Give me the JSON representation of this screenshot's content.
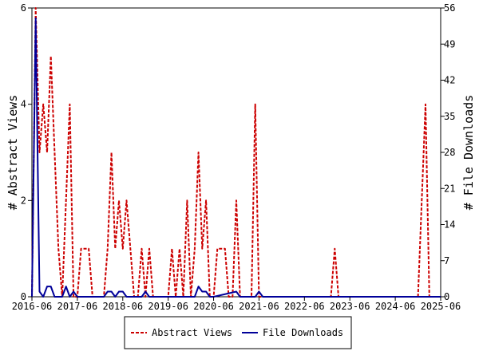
{
  "chart_data": {
    "type": "line",
    "title": "",
    "x_ticks": [
      "2016-06",
      "2017-06",
      "2018-06",
      "2019-06",
      "2020-06",
      "2021-06",
      "2022-06",
      "2023-06",
      "2024-06",
      "2025-06"
    ],
    "left_axis": {
      "label": "# Abstract Views",
      "ylim": [
        0,
        6
      ],
      "ticks": [
        "0",
        "2",
        "4",
        "6"
      ]
    },
    "right_axis": {
      "label": "# File Downloads",
      "ylim": [
        0,
        56
      ],
      "ticks": [
        "0",
        "7",
        "14",
        "21",
        "28",
        "35",
        "42",
        "49",
        "56"
      ]
    },
    "legend": {
      "placement": "bottom-center"
    },
    "series": [
      {
        "name": "Abstract Views",
        "axis": "left",
        "color": "#cc0000",
        "style": "dashed",
        "points": [
          [
            "2016-06",
            0
          ],
          [
            "2016-07",
            6
          ],
          [
            "2016-08",
            3
          ],
          [
            "2016-09",
            4
          ],
          [
            "2016-10",
            3
          ],
          [
            "2016-11",
            5
          ],
          [
            "2016-12",
            3
          ],
          [
            "2017-01",
            1
          ],
          [
            "2017-02",
            0
          ],
          [
            "2017-03",
            2
          ],
          [
            "2017-04",
            4
          ],
          [
            "2017-05",
            0
          ],
          [
            "2017-06",
            0
          ],
          [
            "2017-07",
            1
          ],
          [
            "2017-08",
            1
          ],
          [
            "2017-09",
            1
          ],
          [
            "2017-10",
            0
          ],
          [
            "2017-11",
            0
          ],
          [
            "2017-12",
            0
          ],
          [
            "2018-01",
            0
          ],
          [
            "2018-02",
            1
          ],
          [
            "2018-03",
            3
          ],
          [
            "2018-04",
            1
          ],
          [
            "2018-05",
            2
          ],
          [
            "2018-06",
            1
          ],
          [
            "2018-07",
            2
          ],
          [
            "2018-08",
            1
          ],
          [
            "2018-09",
            0
          ],
          [
            "2018-10",
            0
          ],
          [
            "2018-11",
            1
          ],
          [
            "2018-12",
            0
          ],
          [
            "2019-01",
            1
          ],
          [
            "2019-02",
            0
          ],
          [
            "2019-03",
            0
          ],
          [
            "2019-04",
            0
          ],
          [
            "2019-05",
            0
          ],
          [
            "2019-06",
            0
          ],
          [
            "2019-07",
            1
          ],
          [
            "2019-08",
            0
          ],
          [
            "2019-09",
            1
          ],
          [
            "2019-10",
            0
          ],
          [
            "2019-11",
            2
          ],
          [
            "2019-12",
            0
          ],
          [
            "2020-01",
            1
          ],
          [
            "2020-02",
            3
          ],
          [
            "2020-03",
            1
          ],
          [
            "2020-04",
            2
          ],
          [
            "2020-05",
            0
          ],
          [
            "2020-06",
            0
          ],
          [
            "2020-07",
            1
          ],
          [
            "2020-08",
            1
          ],
          [
            "2020-09",
            1
          ],
          [
            "2020-10",
            0
          ],
          [
            "2020-11",
            0
          ],
          [
            "2020-12",
            2
          ],
          [
            "2021-01",
            0
          ],
          [
            "2021-02",
            0
          ],
          [
            "2021-03",
            0
          ],
          [
            "2021-04",
            0
          ],
          [
            "2021-05",
            4
          ],
          [
            "2021-06",
            0
          ],
          [
            "2022-06",
            0
          ],
          [
            "2023-01",
            0
          ],
          [
            "2023-02",
            1
          ],
          [
            "2023-03",
            0
          ],
          [
            "2024-06",
            0
          ],
          [
            "2024-12",
            0
          ],
          [
            "2025-01",
            2
          ],
          [
            "2025-02",
            4
          ],
          [
            "2025-03",
            0
          ],
          [
            "2025-06",
            0
          ]
        ]
      },
      {
        "name": "File Downloads",
        "axis": "right",
        "color": "#000099",
        "style": "solid",
        "points": [
          [
            "2016-06",
            0
          ],
          [
            "2016-07",
            54
          ],
          [
            "2016-08",
            1
          ],
          [
            "2016-09",
            0
          ],
          [
            "2016-10",
            2
          ],
          [
            "2016-11",
            2
          ],
          [
            "2016-12",
            0
          ],
          [
            "2017-01",
            0
          ],
          [
            "2017-02",
            0
          ],
          [
            "2017-03",
            2
          ],
          [
            "2017-04",
            0
          ],
          [
            "2017-05",
            1
          ],
          [
            "2017-06",
            0
          ],
          [
            "2017-07",
            0
          ],
          [
            "2017-08",
            0
          ],
          [
            "2017-09",
            0
          ],
          [
            "2017-10",
            0
          ],
          [
            "2017-11",
            0
          ],
          [
            "2017-12",
            0
          ],
          [
            "2018-01",
            0
          ],
          [
            "2018-02",
            1
          ],
          [
            "2018-03",
            1
          ],
          [
            "2018-04",
            0
          ],
          [
            "2018-05",
            1
          ],
          [
            "2018-06",
            1
          ],
          [
            "2018-07",
            0
          ],
          [
            "2018-08",
            0
          ],
          [
            "2018-09",
            0
          ],
          [
            "2018-10",
            0
          ],
          [
            "2018-11",
            0
          ],
          [
            "2018-12",
            1
          ],
          [
            "2019-01",
            0
          ],
          [
            "2019-02",
            0
          ],
          [
            "2019-06",
            0
          ],
          [
            "2019-12",
            0
          ],
          [
            "2020-01",
            0
          ],
          [
            "2020-02",
            2
          ],
          [
            "2020-03",
            1
          ],
          [
            "2020-04",
            1
          ],
          [
            "2020-05",
            0
          ],
          [
            "2020-06",
            0
          ],
          [
            "2020-12",
            1
          ],
          [
            "2021-01",
            0
          ],
          [
            "2021-05",
            0
          ],
          [
            "2021-06",
            1
          ],
          [
            "2021-07",
            0
          ],
          [
            "2022-06",
            0
          ],
          [
            "2023-06",
            0
          ],
          [
            "2024-06",
            0
          ],
          [
            "2025-06",
            0
          ]
        ]
      }
    ]
  }
}
